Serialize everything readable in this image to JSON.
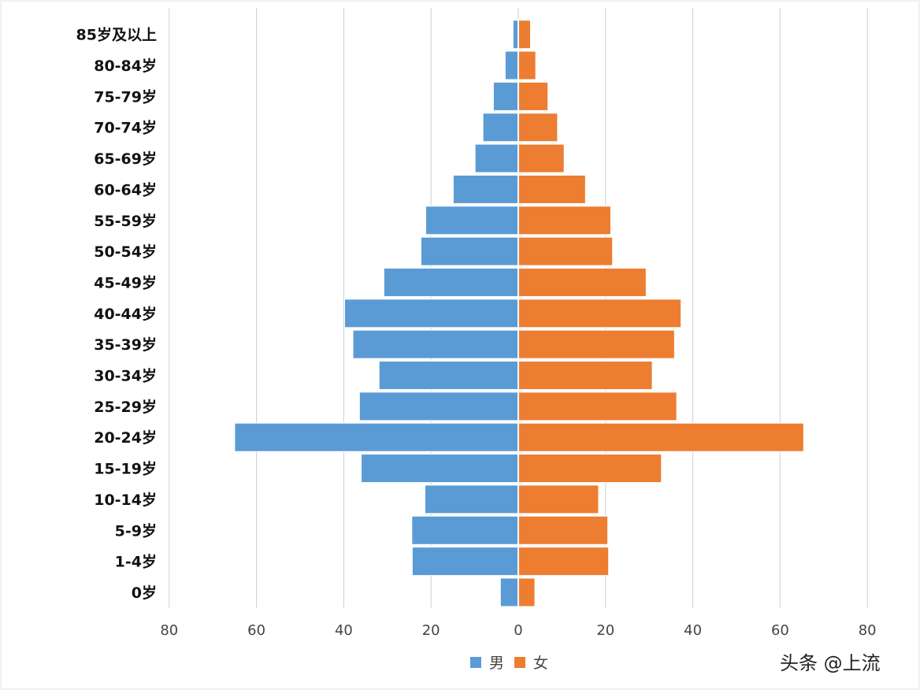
{
  "chart_data": {
    "type": "bar",
    "orientation": "horizontal",
    "layout": "population-pyramid",
    "categories": [
      "85岁及以上",
      "80-84岁",
      "75-79岁",
      "70-74岁",
      "65-69岁",
      "60-64岁",
      "55-59岁",
      "50-54岁",
      "45-49岁",
      "40-44岁",
      "35-39岁",
      "30-34岁",
      "25-29岁",
      "20-24岁",
      "15-19岁",
      "10-14岁",
      "5-9岁",
      "1-4岁",
      "0岁"
    ],
    "series": [
      {
        "name": "男",
        "side": "left",
        "color": "#5b9bd5",
        "values": [
          1.2,
          3.0,
          5.7,
          8.1,
          9.9,
          14.9,
          21.2,
          22.3,
          30.8,
          39.8,
          37.9,
          31.9,
          36.4,
          65.0,
          36.0,
          21.4,
          24.4,
          24.3,
          4.1
        ]
      },
      {
        "name": "女",
        "side": "right",
        "color": "#ed7d31",
        "values": [
          2.8,
          4.0,
          6.8,
          9.0,
          10.5,
          15.4,
          21.2,
          21.6,
          29.3,
          37.3,
          35.8,
          30.7,
          36.3,
          65.4,
          32.8,
          18.4,
          20.5,
          20.7,
          3.8
        ]
      }
    ],
    "x_tick_labels": [
      "80",
      "60",
      "40",
      "20",
      "0",
      "20",
      "40",
      "60",
      "80"
    ],
    "xlim": [
      -80,
      80
    ],
    "grid": "vertical",
    "legend_position": "bottom-center",
    "title": "",
    "xlabel": "",
    "ylabel": ""
  },
  "watermark": "头条 @上流"
}
